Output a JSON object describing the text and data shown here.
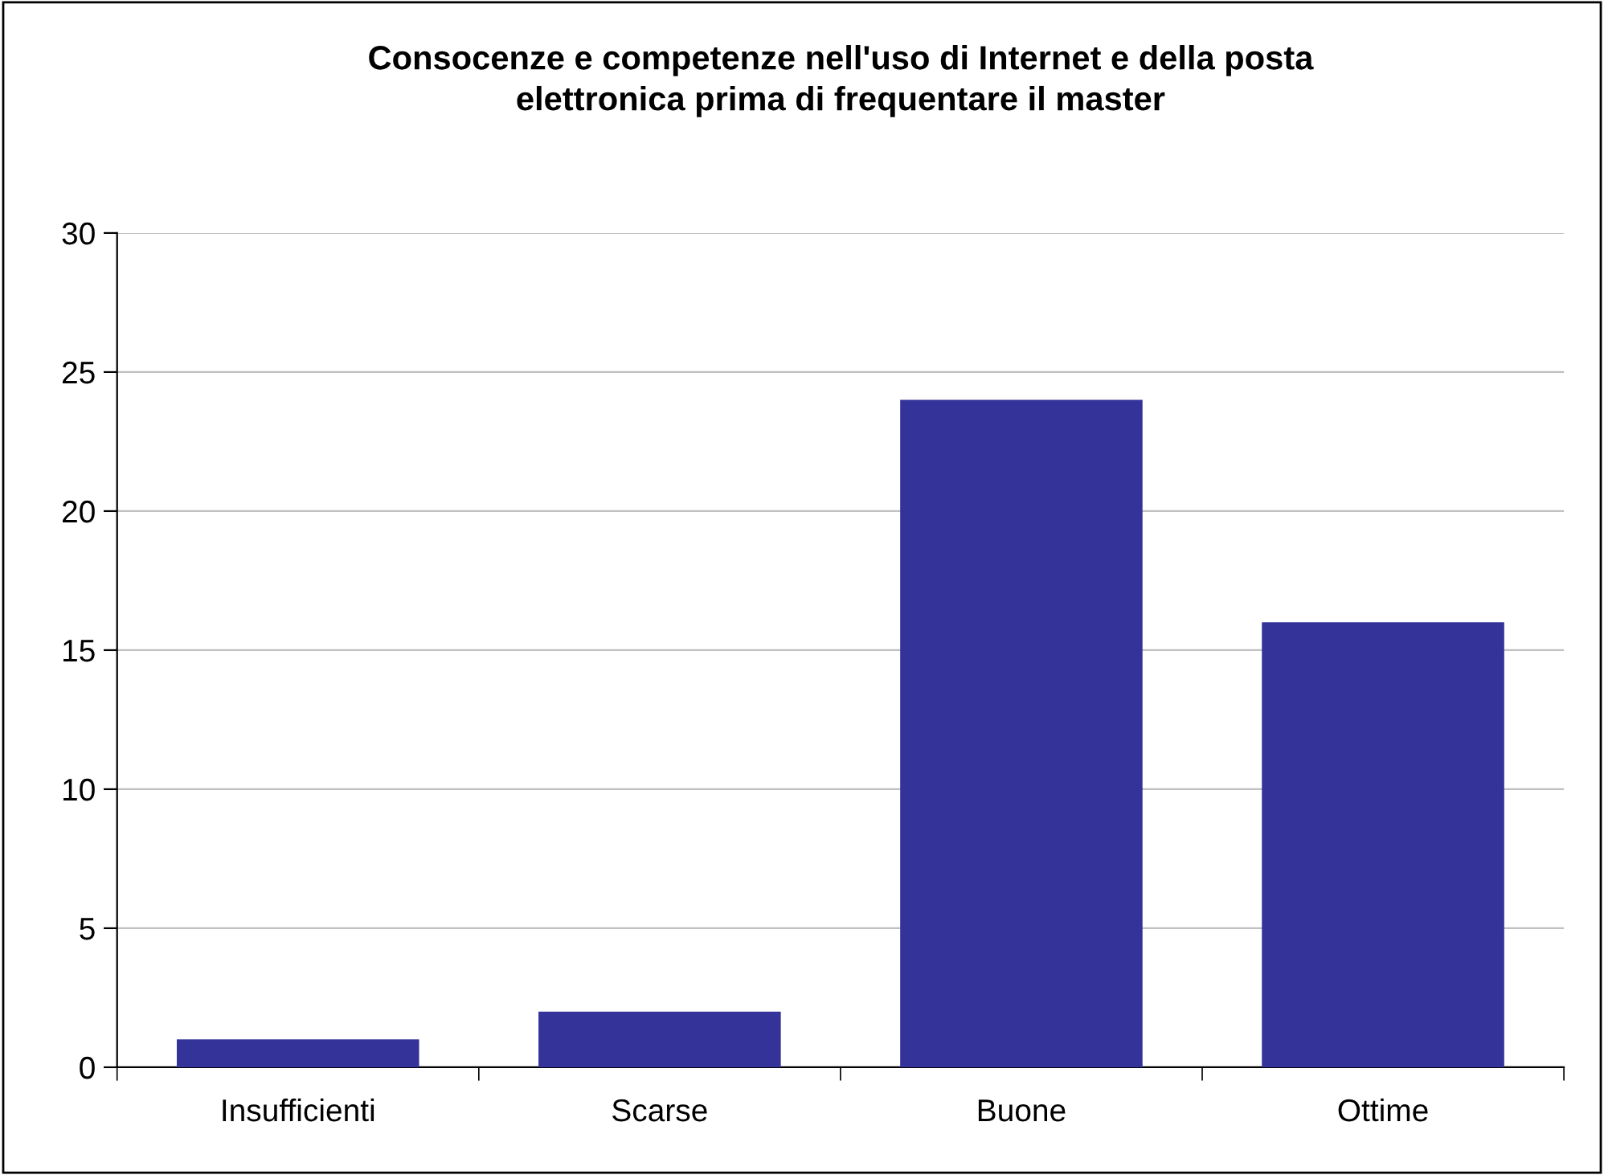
{
  "chart_data": {
    "type": "bar",
    "title": "Consocenze e competenze nell'uso di Internet e della posta\nelettronica prima di frequentare il master",
    "categories": [
      "Insufficienti",
      "Scarse",
      "Buone",
      "Ottime"
    ],
    "values": [
      1,
      2,
      24,
      16
    ],
    "color": "#333399",
    "ylim": [
      0,
      30
    ],
    "yticks": [
      0,
      5,
      10,
      15,
      20,
      25,
      30
    ],
    "grid": "y",
    "legend": false
  }
}
